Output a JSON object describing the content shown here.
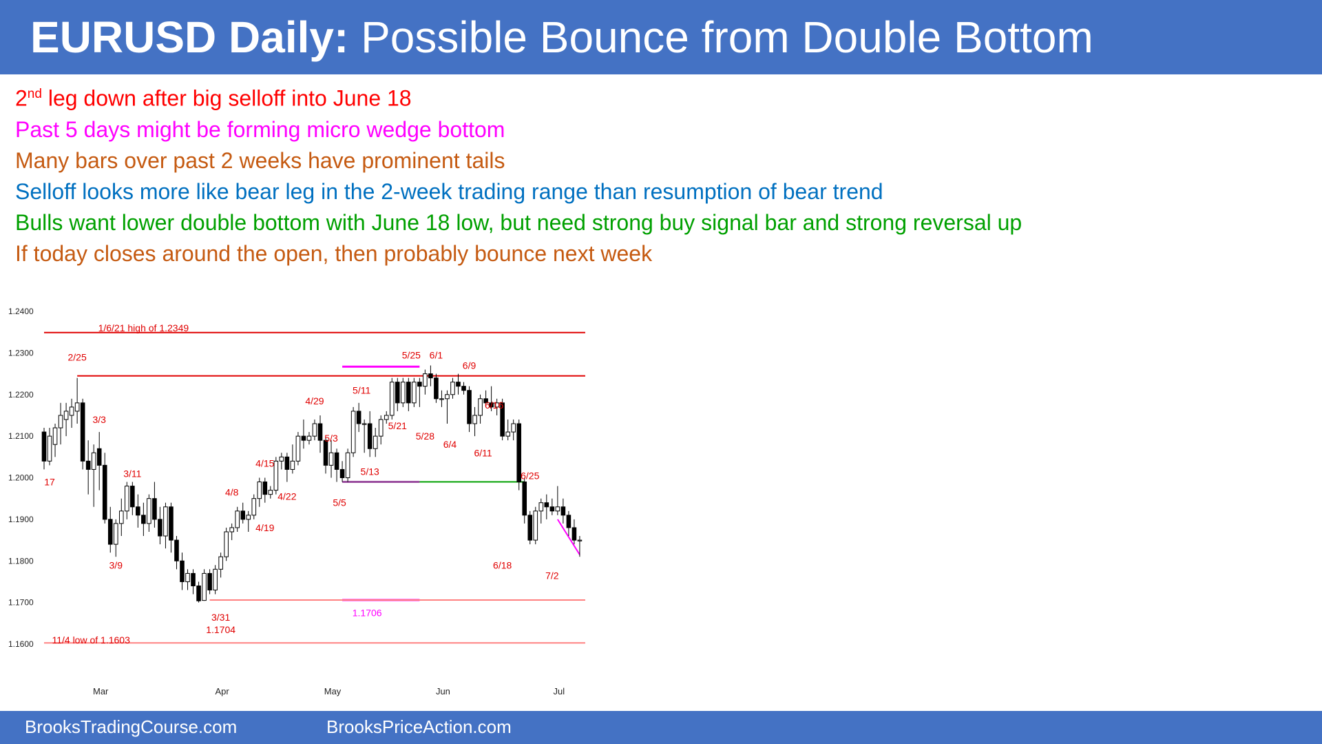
{
  "header": {
    "title_bold": "EURUSD Daily:",
    "title_rest": " Possible Bounce from Double Bottom",
    "bg": "#4472c4"
  },
  "notes": [
    {
      "pre": "2",
      "sup": "nd",
      "text": " leg down after big selloff into June 18",
      "color": "#ff0000"
    },
    {
      "text": "Past 5 days might be forming micro wedge bottom",
      "color": "#ff00ff"
    },
    {
      "text": "Many bars over past 2 weeks have prominent tails",
      "color": "#c55a11"
    },
    {
      "text": "Selloff looks more like bear leg in the 2-week trading range than resumption of bear trend",
      "color": "#0070c0"
    },
    {
      "text": "Bulls want lower double bottom with June 18 low, but need strong buy signal bar and strong reversal up",
      "color": "#00a000"
    },
    {
      "text": "If today closes around the open, then probably bounce next week",
      "color": "#c55a11"
    }
  ],
  "footer": {
    "left": "BrooksTradingCourse.com",
    "right": "BrooksPriceAction.com"
  },
  "chart_data": {
    "type": "candlestick",
    "ylim": [
      1.16,
      1.24
    ],
    "yticks": [
      "1.1600",
      "1.1700",
      "1.1800",
      "1.1900",
      "1.2000",
      "1.2100",
      "1.2200",
      "1.2300",
      "1.2400"
    ],
    "xticks": [
      {
        "label": "Mar",
        "index": 10
      },
      {
        "label": "Apr",
        "index": 32
      },
      {
        "label": "May",
        "index": 52
      },
      {
        "label": "Jun",
        "index": 72
      },
      {
        "label": "Jul",
        "index": 93
      }
    ],
    "candles": [
      [
        1.211,
        1.212,
        1.202,
        1.204
      ],
      [
        1.204,
        1.212,
        1.203,
        1.21
      ],
      [
        1.208,
        1.213,
        1.205,
        1.212
      ],
      [
        1.212,
        1.218,
        1.208,
        1.215
      ],
      [
        1.214,
        1.218,
        1.21,
        1.216
      ],
      [
        1.215,
        1.219,
        1.212,
        1.217
      ],
      [
        1.216,
        1.224,
        1.213,
        1.218
      ],
      [
        1.218,
        1.219,
        1.202,
        1.204
      ],
      [
        1.204,
        1.209,
        1.196,
        1.202
      ],
      [
        1.202,
        1.208,
        1.193,
        1.206
      ],
      [
        1.207,
        1.211,
        1.197,
        1.203
      ],
      [
        1.203,
        1.206,
        1.189,
        1.19
      ],
      [
        1.19,
        1.193,
        1.182,
        1.184
      ],
      [
        1.184,
        1.19,
        1.181,
        1.189
      ],
      [
        1.189,
        1.195,
        1.186,
        1.192
      ],
      [
        1.192,
        1.199,
        1.19,
        1.198
      ],
      [
        1.198,
        1.199,
        1.191,
        1.193
      ],
      [
        1.193,
        1.196,
        1.188,
        1.191
      ],
      [
        1.191,
        1.194,
        1.186,
        1.189
      ],
      [
        1.189,
        1.196,
        1.187,
        1.195
      ],
      [
        1.195,
        1.199,
        1.188,
        1.19
      ],
      [
        1.19,
        1.193,
        1.184,
        1.186
      ],
      [
        1.186,
        1.194,
        1.183,
        1.193
      ],
      [
        1.193,
        1.194,
        1.182,
        1.185
      ],
      [
        1.185,
        1.186,
        1.178,
        1.18
      ],
      [
        1.18,
        1.182,
        1.173,
        1.175
      ],
      [
        1.175,
        1.178,
        1.173,
        1.177
      ],
      [
        1.177,
        1.178,
        1.172,
        1.174
      ],
      [
        1.174,
        1.175,
        1.17,
        1.1704
      ],
      [
        1.1705,
        1.178,
        1.1704,
        1.177
      ],
      [
        1.177,
        1.178,
        1.172,
        1.173
      ],
      [
        1.173,
        1.179,
        1.172,
        1.178
      ],
      [
        1.178,
        1.182,
        1.176,
        1.181
      ],
      [
        1.181,
        1.188,
        1.18,
        1.187
      ],
      [
        1.187,
        1.189,
        1.185,
        1.188
      ],
      [
        1.188,
        1.193,
        1.187,
        1.192
      ],
      [
        1.192,
        1.194,
        1.189,
        1.19
      ],
      [
        1.19,
        1.192,
        1.187,
        1.191
      ],
      [
        1.191,
        1.196,
        1.19,
        1.195
      ],
      [
        1.195,
        1.2,
        1.193,
        1.199
      ],
      [
        1.199,
        1.2,
        1.194,
        1.196
      ],
      [
        1.196,
        1.198,
        1.195,
        1.197
      ],
      [
        1.197,
        1.205,
        1.196,
        1.204
      ],
      [
        1.204,
        1.206,
        1.202,
        1.205
      ],
      [
        1.205,
        1.206,
        1.199,
        1.202
      ],
      [
        1.202,
        1.208,
        1.201,
        1.204
      ],
      [
        1.204,
        1.211,
        1.203,
        1.21
      ],
      [
        1.21,
        1.214,
        1.207,
        1.209
      ],
      [
        1.209,
        1.211,
        1.208,
        1.21
      ],
      [
        1.21,
        1.214,
        1.209,
        1.213
      ],
      [
        1.213,
        1.215,
        1.206,
        1.209
      ],
      [
        1.209,
        1.21,
        1.201,
        1.203
      ],
      [
        1.203,
        1.209,
        1.2,
        1.206
      ],
      [
        1.206,
        1.207,
        1.199,
        1.202
      ],
      [
        1.202,
        1.204,
        1.199,
        1.2
      ],
      [
        1.2,
        1.207,
        1.199,
        1.206
      ],
      [
        1.206,
        1.217,
        1.205,
        1.216
      ],
      [
        1.216,
        1.218,
        1.211,
        1.213
      ],
      [
        1.213,
        1.214,
        1.206,
        1.213
      ],
      [
        1.213,
        1.216,
        1.205,
        1.207
      ],
      [
        1.207,
        1.212,
        1.205,
        1.21
      ],
      [
        1.21,
        1.215,
        1.208,
        1.214
      ],
      [
        1.214,
        1.216,
        1.213,
        1.215
      ],
      [
        1.215,
        1.224,
        1.214,
        1.223
      ],
      [
        1.223,
        1.224,
        1.216,
        1.218
      ],
      [
        1.218,
        1.224,
        1.217,
        1.223
      ],
      [
        1.223,
        1.224,
        1.216,
        1.218
      ],
      [
        1.218,
        1.224,
        1.217,
        1.223
      ],
      [
        1.223,
        1.224,
        1.217,
        1.222
      ],
      [
        1.222,
        1.226,
        1.22,
        1.225
      ],
      [
        1.225,
        1.227,
        1.222,
        1.224
      ],
      [
        1.224,
        1.225,
        1.218,
        1.219
      ],
      [
        1.219,
        1.221,
        1.217,
        1.219
      ],
      [
        1.219,
        1.221,
        1.213,
        1.22
      ],
      [
        1.22,
        1.224,
        1.219,
        1.223
      ],
      [
        1.223,
        1.225,
        1.22,
        1.222
      ],
      [
        1.222,
        1.223,
        1.22,
        1.221
      ],
      [
        1.221,
        1.222,
        1.211,
        1.213
      ],
      [
        1.213,
        1.217,
        1.21,
        1.215
      ],
      [
        1.215,
        1.22,
        1.213,
        1.219
      ],
      [
        1.219,
        1.221,
        1.217,
        1.218
      ],
      [
        1.218,
        1.222,
        1.216,
        1.217
      ],
      [
        1.217,
        1.219,
        1.215,
        1.218
      ],
      [
        1.218,
        1.219,
        1.209,
        1.21
      ],
      [
        1.21,
        1.214,
        1.209,
        1.211
      ],
      [
        1.211,
        1.214,
        1.209,
        1.213
      ],
      [
        1.213,
        1.214,
        1.197,
        1.199
      ],
      [
        1.199,
        1.2,
        1.189,
        1.191
      ],
      [
        1.191,
        1.192,
        1.184,
        1.185
      ],
      [
        1.185,
        1.193,
        1.184,
        1.192
      ],
      [
        1.192,
        1.195,
        1.189,
        1.194
      ],
      [
        1.194,
        1.196,
        1.19,
        1.193
      ],
      [
        1.193,
        1.195,
        1.191,
        1.192
      ],
      [
        1.192,
        1.198,
        1.191,
        1.193
      ],
      [
        1.193,
        1.195,
        1.189,
        1.191
      ],
      [
        1.191,
        1.192,
        1.186,
        1.188
      ],
      [
        1.188,
        1.19,
        1.184,
        1.185
      ],
      [
        1.185,
        1.186,
        1.181,
        1.185
      ]
    ],
    "horizontal_lines": [
      {
        "y": 1.2349,
        "x_from": 0,
        "x_to": 98,
        "color": "#e00000"
      },
      {
        "y": 1.2245,
        "x_from": 6,
        "x_to": 98,
        "color": "#e00000"
      },
      {
        "y": 1.199,
        "x_from": 54,
        "x_to": 68,
        "color": "#9b50a0"
      },
      {
        "y": 1.199,
        "x_from": 68,
        "x_to": 87,
        "color": "#00a000"
      },
      {
        "y": 1.2267,
        "x_from": 54,
        "x_to": 68,
        "color": "#ff00ff"
      },
      {
        "y": 1.1706,
        "x_from": 54,
        "x_to": 68,
        "color": "#ff00ff"
      },
      {
        "y": 1.1706,
        "x_from": 30,
        "x_to": 98,
        "color": "#ff8080"
      },
      {
        "y": 1.1603,
        "x_from": 0,
        "x_to": 98,
        "color": "#ff8080"
      }
    ],
    "trend_line": {
      "from": [
        93,
        1.19
      ],
      "to": [
        97,
        1.1815
      ],
      "color": "#ff00ff"
    },
    "annotations": [
      {
        "text": "1/6/21 high of 1.2349",
        "x": 18,
        "y": 1.236,
        "color": "#e00000"
      },
      {
        "text": "2/25",
        "x": 6,
        "y": 1.229,
        "color": "#e00000"
      },
      {
        "text": "3/3",
        "x": 10,
        "y": 1.214,
        "color": "#e00000"
      },
      {
        "text": "3/11",
        "x": 16,
        "y": 1.201,
        "color": "#e00000"
      },
      {
        "text": "17",
        "x": 1,
        "y": 1.199,
        "color": "#e00000"
      },
      {
        "text": "3/9",
        "x": 13,
        "y": 1.179,
        "color": "#e00000"
      },
      {
        "text": "4/8",
        "x": 34,
        "y": 1.1965,
        "color": "#e00000"
      },
      {
        "text": "4/15",
        "x": 40,
        "y": 1.2035,
        "color": "#e00000"
      },
      {
        "text": "4/22",
        "x": 44,
        "y": 1.1955,
        "color": "#e00000"
      },
      {
        "text": "4/19",
        "x": 40,
        "y": 1.188,
        "color": "#e00000"
      },
      {
        "text": "4/29",
        "x": 49,
        "y": 1.2185,
        "color": "#e00000"
      },
      {
        "text": "5/3",
        "x": 52,
        "y": 1.2095,
        "color": "#e00000"
      },
      {
        "text": "5/5",
        "x": 53.5,
        "y": 1.194,
        "color": "#e00000"
      },
      {
        "text": "5/11",
        "x": 57.5,
        "y": 1.221,
        "color": "#e00000"
      },
      {
        "text": "5/13",
        "x": 59,
        "y": 1.2015,
        "color": "#e00000"
      },
      {
        "text": "5/21",
        "x": 64,
        "y": 1.2125,
        "color": "#e00000"
      },
      {
        "text": "5/25",
        "x": 66.5,
        "y": 1.2295,
        "color": "#e00000"
      },
      {
        "text": "6/1",
        "x": 71,
        "y": 1.2295,
        "color": "#e00000"
      },
      {
        "text": "5/28",
        "x": 69,
        "y": 1.21,
        "color": "#e00000"
      },
      {
        "text": "6/4",
        "x": 73.5,
        "y": 1.208,
        "color": "#e00000"
      },
      {
        "text": "6/9",
        "x": 77,
        "y": 1.227,
        "color": "#e00000"
      },
      {
        "text": "6/16",
        "x": 81.5,
        "y": 1.2175,
        "color": "#e00000"
      },
      {
        "text": "6/11",
        "x": 79.5,
        "y": 1.206,
        "color": "#e00000"
      },
      {
        "text": "6/25",
        "x": 88,
        "y": 1.2005,
        "color": "#e00000"
      },
      {
        "text": "6/18",
        "x": 83,
        "y": 1.179,
        "color": "#e00000"
      },
      {
        "text": "7/2",
        "x": 92,
        "y": 1.1765,
        "color": "#e00000"
      },
      {
        "text": "3/31",
        "x": 32,
        "y": 1.1665,
        "color": "#e00000"
      },
      {
        "text": "1.1704",
        "x": 32,
        "y": 1.1635,
        "color": "#e00000"
      },
      {
        "text": "1.1706",
        "x": 58.5,
        "y": 1.1675,
        "color": "#ff00ff"
      },
      {
        "text": "11/4 low of 1.1603",
        "x": 8.5,
        "y": 1.161,
        "color": "#e00000"
      }
    ]
  }
}
